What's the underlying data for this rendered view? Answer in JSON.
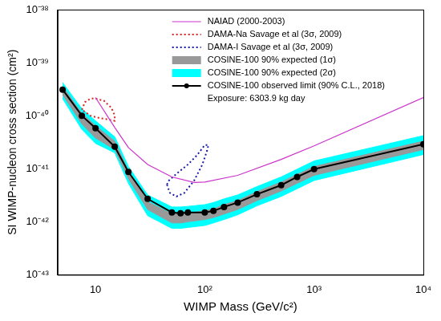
{
  "chart_data": {
    "type": "line",
    "x_label": "WIMP Mass (GeV/c²)",
    "y_label": "SI WIMP-nucleon cross section (cm²)",
    "annotation": "Exposure: 6303.9 kg day",
    "log": true,
    "grid": false,
    "legend": "upper right",
    "xlim": [
      4.5,
      10000
    ],
    "ylim": [
      1e-43,
      1e-38
    ],
    "xticks": [
      10,
      {
        "value": 100,
        "label": "10²"
      },
      {
        "value": 1000,
        "label": "10³"
      },
      {
        "value": 10000,
        "label": "10⁴"
      }
    ],
    "yticks": [
      {
        "value": 1e-43,
        "label": "10⁻⁴³"
      },
      {
        "value": 1e-42,
        "label": "10⁻⁴²"
      },
      {
        "value": 1e-41,
        "label": "10⁻⁴¹"
      },
      {
        "value": 1e-40,
        "label": "10⁻⁴⁰"
      },
      {
        "value": 1e-39,
        "label": "10⁻³⁹"
      },
      {
        "value": 1e-38,
        "label": "10⁻³⁸"
      }
    ],
    "series": [
      {
        "name": "NAIAD (2000-2003)",
        "color": "#cc33cc",
        "type": "line",
        "line_style": "solid",
        "x": [
          10,
          15,
          20,
          30,
          50,
          80,
          100,
          200,
          500,
          1000,
          10000
        ],
        "values": [
          2.2e-40,
          6e-41,
          2.5e-41,
          1.2e-41,
          7e-42,
          5.5e-42,
          5.6e-42,
          7.5e-42,
          1.5e-41,
          2.7e-41,
          2.2e-40
        ]
      },
      {
        "name": "DAMA-Na Savage et al (3σ, 2009)",
        "color": "#dd2222",
        "type": "line",
        "line_style": "dotted",
        "x": [
          7.5,
          8,
          9,
          10,
          12,
          14,
          15,
          15,
          13,
          11,
          9,
          7.5
        ],
        "values": [
          1.3e-40,
          1.8e-40,
          2.1e-40,
          2.1e-40,
          1.9e-40,
          1.4e-40,
          1e-40,
          8e-41,
          8.5e-41,
          9e-41,
          1e-40,
          1.3e-40
        ]
      },
      {
        "name": "DAMA-I Savage et al (3σ, 2009)",
        "color": "#1a1aaa",
        "type": "line",
        "line_style": "dotted",
        "x": [
          45,
          48,
          55,
          65,
          80,
          95,
          105,
          108,
          100,
          85,
          70,
          55,
          47,
          45
        ],
        "values": [
          5e-42,
          3.5e-42,
          3e-42,
          3.5e-42,
          6e-42,
          1.2e-41,
          2.2e-41,
          2.8e-41,
          2.8e-41,
          1.8e-41,
          1.2e-41,
          8e-42,
          6e-42,
          5e-42
        ]
      },
      {
        "name": "COSINE-100 90% expected (1σ)",
        "color": "#999999",
        "type": "band",
        "x": [
          5,
          7.5,
          10,
          15,
          20,
          30,
          50,
          60,
          70,
          100,
          120,
          150,
          200,
          300,
          500,
          700,
          1000,
          10000
        ],
        "lower": [
          2.5e-40,
          7e-41,
          3.8e-41,
          2.3e-41,
          6.5e-42,
          1.7e-42,
          9.5e-43,
          9.5e-43,
          1e-42,
          1.1e-42,
          1.2e-42,
          1.4e-42,
          1.7e-42,
          2.5e-42,
          3.8e-42,
          5.3e-42,
          7.5e-42,
          2.3e-41
        ],
        "upper": [
          3.6e-40,
          1.1e-40,
          6.5e-41,
          3.3e-41,
          9e-42,
          2.4e-42,
          1.4e-42,
          1.4e-42,
          1.45e-42,
          1.6e-42,
          1.75e-42,
          2.1e-42,
          2.5e-42,
          3.7e-42,
          5.6e-42,
          7.8e-42,
          1.1e-41,
          3.3e-41
        ]
      },
      {
        "name": "COSINE-100 90% expected (2σ)",
        "color": "#00ffff",
        "type": "band",
        "x": [
          5,
          7.5,
          10,
          15,
          20,
          30,
          50,
          60,
          70,
          100,
          120,
          150,
          200,
          300,
          500,
          700,
          1000,
          10000
        ],
        "lower": [
          2.1e-40,
          5.5e-41,
          3e-41,
          2e-41,
          5.3e-42,
          1.3e-42,
          7.5e-43,
          7.5e-43,
          7.8e-43,
          8.5e-43,
          9.5e-43,
          1.1e-42,
          1.35e-42,
          2e-42,
          3e-42,
          4.2e-42,
          6e-42,
          1.85e-41
        ],
        "upper": [
          4.2e-40,
          1.35e-40,
          8e-41,
          4e-41,
          1.1e-41,
          3.2e-42,
          1.9e-42,
          1.9e-42,
          1.95e-42,
          2.1e-42,
          2.3e-42,
          2.7e-42,
          3.2e-42,
          4.6e-42,
          7e-42,
          9.8e-42,
          1.4e-41,
          4.2e-41
        ]
      },
      {
        "name": "COSINE-100 observed limit (90% C.L., 2018)",
        "color": "#000000",
        "type": "line",
        "line_style": "solid",
        "marker": "circle",
        "x": [
          5,
          7.5,
          10,
          15,
          20,
          30,
          50,
          60,
          70,
          100,
          120,
          150,
          200,
          300,
          500,
          700,
          1000,
          10000
        ],
        "values": [
          3.1e-40,
          1e-40,
          5.8e-41,
          2.6e-41,
          8.7e-42,
          2.7e-42,
          1.5e-42,
          1.45e-42,
          1.5e-42,
          1.5e-42,
          1.6e-42,
          1.9e-42,
          2.3e-42,
          3.3e-42,
          4.9e-42,
          7e-42,
          9.8e-42,
          2.9e-41
        ]
      }
    ]
  }
}
